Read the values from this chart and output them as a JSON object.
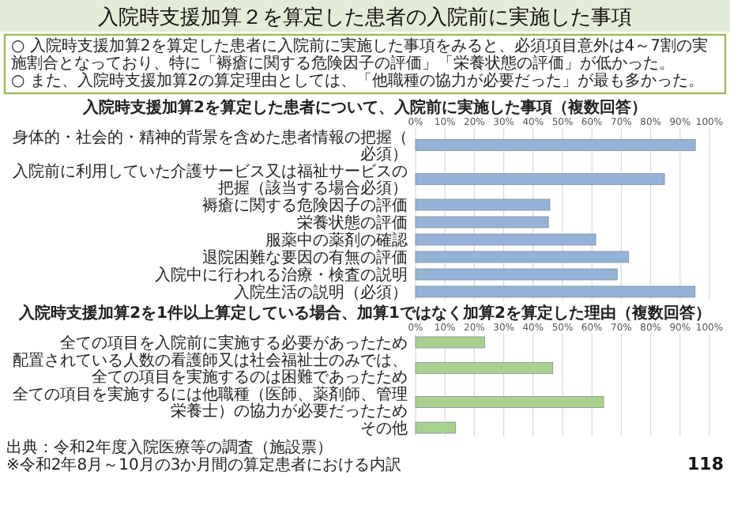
{
  "chart_data": [
    {
      "type": "other",
      "title": "入院時支援加算２を算定した患者の入院前に実施した事項",
      "annotations": [
        "○ 入院時支援加算2を算定した患者に入院前に実施した事項をみると、必須項目意外は4～7割の実施割合となっており、特に「褥瘡に関する危険因子の評価」「栄養状態の評価」が低かった。",
        "○ また、入院時支援加算2の算定理由としては、「他職種の協力が必要だった」が最も多かった。"
      ]
    },
    {
      "type": "bar",
      "orientation": "horizontal",
      "title": "入院時支援加算2を算定した患者について、入院前に実施した事項（複数回答）",
      "categories": [
        "身体的・社会的・精神的背景を含めた患者情報の把握（必須）",
        "入院前に利用していた介護サービス又は福祉サービスの把握（該当する場合必須）",
        "褥瘡に関する危険因子の評価",
        "栄養状態の評価",
        "服薬中の薬剤の確認",
        "退院困難な要因の有無の評価",
        "入院中に行われる治療・検査の説明",
        "入院生活の説明（必須）"
      ],
      "values": [
        95.2,
        84.7,
        45.7,
        45.2,
        61.3,
        72.5,
        68.6,
        95.1
      ],
      "color": "#95b3d7",
      "xlim": [
        0,
        100
      ],
      "xticks": [
        {
          "value": 0,
          "label": "0%"
        },
        {
          "value": 10,
          "label": "10%"
        },
        {
          "value": 20,
          "label": "20%"
        },
        {
          "value": 30,
          "label": "30%"
        },
        {
          "value": 40,
          "label": "40%"
        },
        {
          "value": 50,
          "label": "50%"
        },
        {
          "value": 60,
          "label": "60%"
        },
        {
          "value": 70,
          "label": "70%"
        },
        {
          "value": 80,
          "label": "80%"
        },
        {
          "value": 90,
          "label": "90%"
        },
        {
          "value": 100,
          "label": "100%"
        }
      ],
      "grid": "x"
    },
    {
      "type": "bar",
      "orientation": "horizontal",
      "title": "入院時支援加算2を1件以上算定している場合、加算1ではなく加算2を算定した理由（複数回答）",
      "categories": [
        "全ての項目を入院前に実施する必要があったため",
        "配置されている人数の看護師又は社会福祉士のみでは、全ての項目を実施するのは困難であったため",
        "全ての項目を実施するには他職種（医師、薬剤師、管理栄養士）の協力が必要だったため",
        "その他"
      ],
      "values": [
        23.5,
        46.7,
        64,
        13.6
      ],
      "color": "#a9d18e",
      "xlim": [
        0,
        100
      ],
      "xticks": [
        {
          "value": 0,
          "label": "0%"
        },
        {
          "value": 10,
          "label": "10%"
        },
        {
          "value": 20,
          "label": "20%"
        },
        {
          "value": 30,
          "label": "30%"
        },
        {
          "value": 40,
          "label": "40%"
        },
        {
          "value": 50,
          "label": "50%"
        },
        {
          "value": 60,
          "label": "60%"
        },
        {
          "value": 70,
          "label": "70%"
        },
        {
          "value": 80,
          "label": "80%"
        },
        {
          "value": 90,
          "label": "90%"
        },
        {
          "value": 100,
          "label": "100%"
        }
      ],
      "grid": "x",
      "annotations": [
        "出典：令和2年度入院医療等の調査（施設票）",
        "※令和2年8月～10月の3か月間の算定患者における内訳",
        "118"
      ]
    }
  ]
}
